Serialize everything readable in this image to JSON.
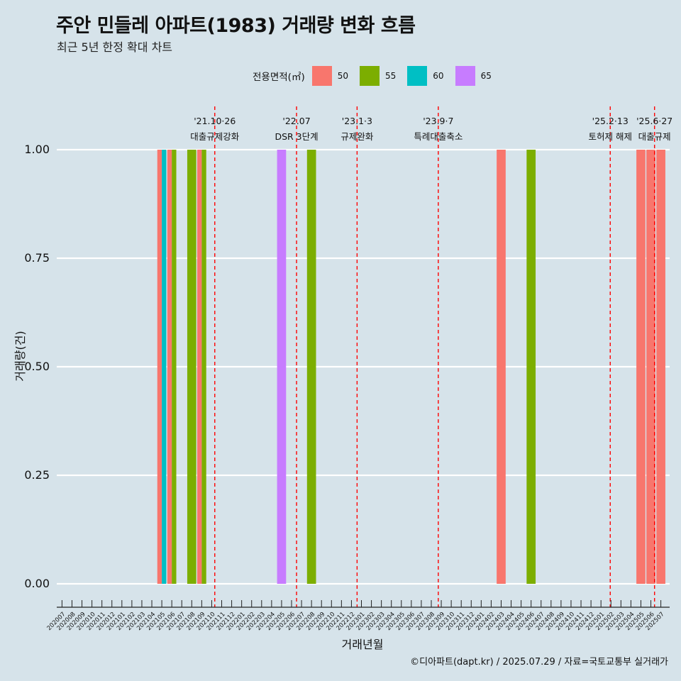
{
  "page": {
    "title": "주안 민들레 아파트(1983) 거래량 변화 흐름",
    "subtitle": "최근 5년 한정 확대 차트",
    "caption": "©디아파트(dapt.kr) / 2025.07.29 / 자료=국토교통부 실거래가"
  },
  "colors": {
    "background": "#d6e3ea",
    "gridline": "#ffffff",
    "event_line": "#ff0000"
  },
  "chart_data": {
    "type": "bar",
    "xlabel": "거래년월",
    "ylabel": "거래량(건)",
    "ylim": [
      0,
      1
    ],
    "yticks": [
      "0.00",
      "0.25",
      "0.50",
      "0.75",
      "1.00"
    ],
    "categories": [
      "202007",
      "202008",
      "202009",
      "202010",
      "202011",
      "202012",
      "202101",
      "202102",
      "202103",
      "202104",
      "202105",
      "202106",
      "202107",
      "202108",
      "202109",
      "202110",
      "202111",
      "202112",
      "202201",
      "202202",
      "202203",
      "202204",
      "202205",
      "202206",
      "202207",
      "202208",
      "202209",
      "202210",
      "202211",
      "202212",
      "202301",
      "202302",
      "202303",
      "202304",
      "202305",
      "202306",
      "202307",
      "202308",
      "202309",
      "202310",
      "202311",
      "202312",
      "202401",
      "202402",
      "202403",
      "202404",
      "202405",
      "202406",
      "202407",
      "202408",
      "202409",
      "202410",
      "202411",
      "202412",
      "202501",
      "202502",
      "202503",
      "202504",
      "202505",
      "202506",
      "202507"
    ],
    "legend": {
      "title": "전용면적(㎡)",
      "position": "top",
      "entries": [
        {
          "label": "50",
          "color": "#f8766d"
        },
        {
          "label": "55",
          "color": "#7cae00"
        },
        {
          "label": "60",
          "color": "#00bfc4"
        },
        {
          "label": "65",
          "color": "#c77cff"
        }
      ]
    },
    "bars": [
      {
        "month": "202105",
        "area": "50",
        "value": 1
      },
      {
        "month": "202105",
        "area": "60",
        "value": 1
      },
      {
        "month": "202106",
        "area": "50",
        "value": 1
      },
      {
        "month": "202106",
        "area": "55",
        "value": 1
      },
      {
        "month": "202108",
        "area": "55",
        "value": 1
      },
      {
        "month": "202109",
        "area": "50",
        "value": 1
      },
      {
        "month": "202109",
        "area": "55",
        "value": 1
      },
      {
        "month": "202205",
        "area": "65",
        "value": 1
      },
      {
        "month": "202208",
        "area": "55",
        "value": 1
      },
      {
        "month": "202403",
        "area": "50",
        "value": 1
      },
      {
        "month": "202406",
        "area": "55",
        "value": 1
      },
      {
        "month": "202505",
        "area": "50",
        "value": 1
      },
      {
        "month": "202506",
        "area": "50",
        "value": 1
      },
      {
        "month": "202507",
        "area": "50",
        "value": 1
      }
    ],
    "events": [
      {
        "date": "2021-10-26",
        "line1": "'21.10·26",
        "line2": "대출규제강화"
      },
      {
        "date": "2022-07-01",
        "line1": "'22.07",
        "line2": "DSR 3단계"
      },
      {
        "date": "2023-01-03",
        "line1": "'23.1·3",
        "line2": "규제완화"
      },
      {
        "date": "2023-09-07",
        "line1": "'23.9·7",
        "line2": "특례대출축소"
      },
      {
        "date": "2025-02-13",
        "line1": "'25.2·13",
        "line2": "토허제 해제"
      },
      {
        "date": "2025-06-27",
        "line1": "'25.6·27",
        "line2": "대출규제"
      }
    ]
  }
}
